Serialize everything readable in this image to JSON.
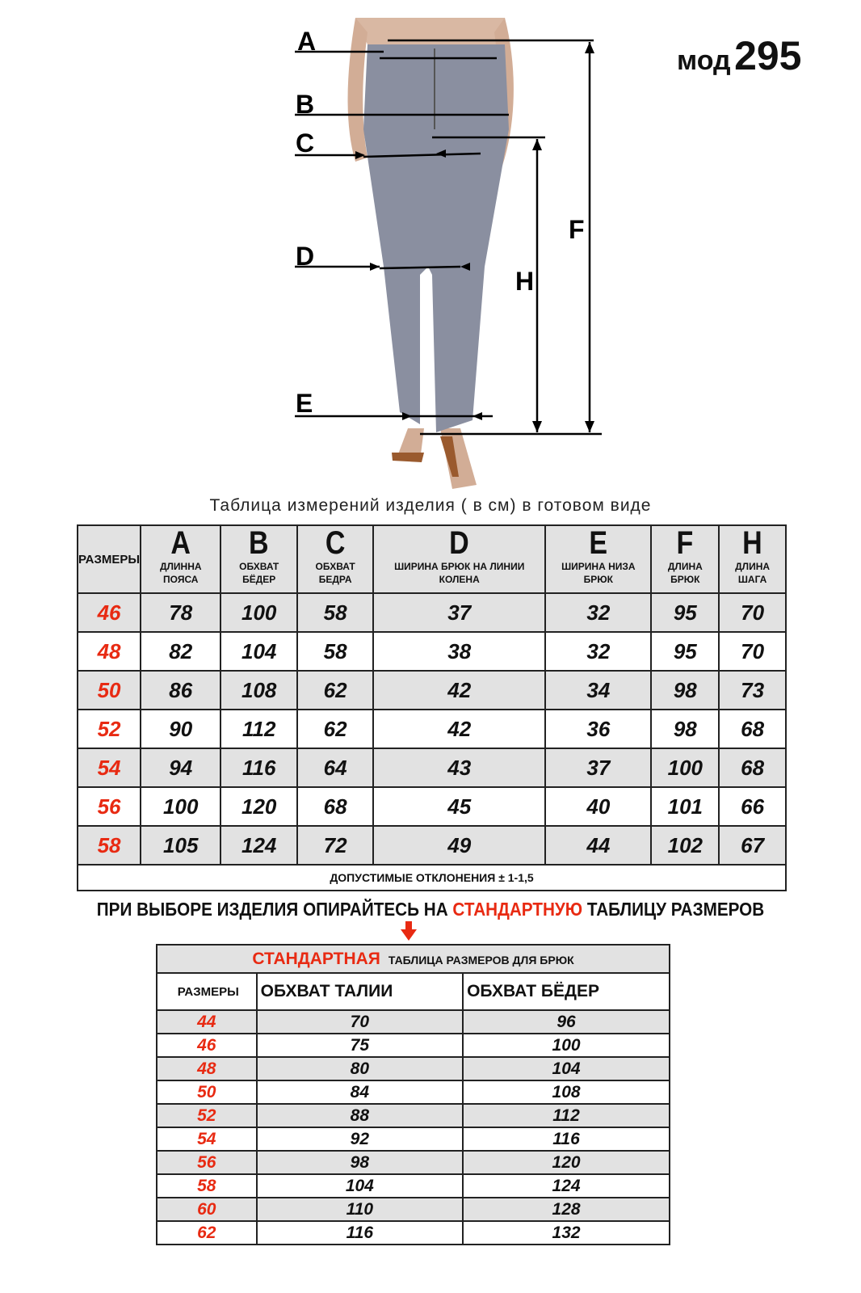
{
  "model": {
    "prefix": "мод",
    "number": "295"
  },
  "diagram_labels": {
    "A": "A",
    "B": "B",
    "C": "C",
    "D": "D",
    "E": "E",
    "F": "F",
    "H": "H"
  },
  "measure_table": {
    "title": "Таблица  измерений изделия ( в см) в готовом виде",
    "sizes_header": "РАЗМЕРЫ",
    "columns": [
      {
        "letter": "A",
        "label": "ДЛИННА ПОЯСА"
      },
      {
        "letter": "B",
        "label": "ОБХВАТ БЁДЕР"
      },
      {
        "letter": "C",
        "label": "ОБХВАТ БЕДРА"
      },
      {
        "letter": "D",
        "label": "ШИРИНА БРЮК НА ЛИНИИ КОЛЕНА"
      },
      {
        "letter": "E",
        "label": "ШИРИНА НИЗА БРЮК"
      },
      {
        "letter": "F",
        "label": "ДЛИНА БРЮК"
      },
      {
        "letter": "H",
        "label": "ДЛИНА ШАГА"
      }
    ],
    "rows": [
      {
        "size": "46",
        "values": [
          "78",
          "100",
          "58",
          "37",
          "32",
          "95",
          "70"
        ]
      },
      {
        "size": "48",
        "values": [
          "82",
          "104",
          "58",
          "38",
          "32",
          "95",
          "70"
        ]
      },
      {
        "size": "50",
        "values": [
          "86",
          "108",
          "62",
          "42",
          "34",
          "98",
          "73"
        ]
      },
      {
        "size": "52",
        "values": [
          "90",
          "112",
          "62",
          "42",
          "36",
          "98",
          "68"
        ]
      },
      {
        "size": "54",
        "values": [
          "94",
          "116",
          "64",
          "43",
          "37",
          "100",
          "68"
        ]
      },
      {
        "size": "56",
        "values": [
          "100",
          "120",
          "68",
          "45",
          "40",
          "101",
          "66"
        ]
      },
      {
        "size": "58",
        "values": [
          "105",
          "124",
          "72",
          "49",
          "44",
          "102",
          "67"
        ]
      }
    ],
    "tolerance": "ДОПУСТИМЫЕ ОТКЛОНЕНИЯ  ±  1-1,5"
  },
  "advice": {
    "before": "ПРИ ВЫБОРЕ ИЗДЕЛИЯ ОПИРАЙТЕСЬ НА ",
    "highlight": "СТАНДАРТНУЮ",
    "after": " ТАБЛИЦУ РАЗМЕРОВ"
  },
  "standard_table": {
    "title_red": "СТАНДАРТНАЯ",
    "title_rest": "ТАБЛИЦА РАЗМЕРОВ ДЛЯ БРЮК",
    "headers": [
      "РАЗМЕРЫ",
      "ОБХВАТ ТАЛИИ",
      "ОБХВАТ БЁДЕР"
    ],
    "rows": [
      [
        "44",
        "70",
        "96"
      ],
      [
        "46",
        "75",
        "100"
      ],
      [
        "48",
        "80",
        "104"
      ],
      [
        "50",
        "84",
        "108"
      ],
      [
        "52",
        "88",
        "112"
      ],
      [
        "54",
        "92",
        "116"
      ],
      [
        "56",
        "98",
        "120"
      ],
      [
        "58",
        "104",
        "124"
      ],
      [
        "60",
        "110",
        "128"
      ],
      [
        "62",
        "116",
        "132"
      ]
    ]
  },
  "colors": {
    "accent_red": "#e82a12",
    "row_gray": "#e2e2e2",
    "pants_gray": "#8a8fa0"
  }
}
